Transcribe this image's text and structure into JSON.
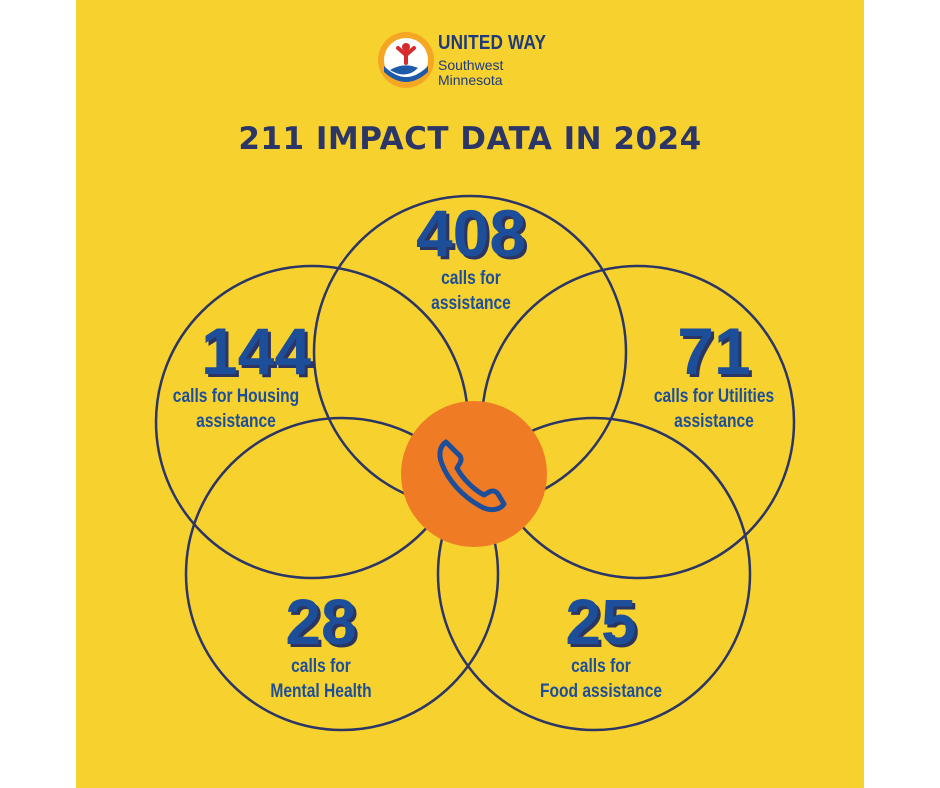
{
  "logo": {
    "name": "UNITED WAY",
    "line1": "Southwest",
    "line2": "Minnesota"
  },
  "title": "211 IMPACT DATA IN 2024",
  "stats": {
    "top": {
      "number": "408",
      "label_line1": "calls for",
      "label_line2": "assistance"
    },
    "left": {
      "number": "144",
      "label_line1": "calls for Housing",
      "label_line2": "assistance"
    },
    "right": {
      "number": "71",
      "label_line1": "calls for Utilities",
      "label_line2": "assistance"
    },
    "bottom_left": {
      "number": "28",
      "label_line1": "calls for",
      "label_line2": "Mental Health"
    },
    "bottom_right": {
      "number": "25",
      "label_line1": "calls for",
      "label_line2": "Food assistance"
    }
  },
  "center_icon": "phone-icon",
  "colors": {
    "background": "#f7d22e",
    "navy": "#2b3566",
    "blue": "#1d4e9a",
    "orange": "#ef7b24"
  }
}
